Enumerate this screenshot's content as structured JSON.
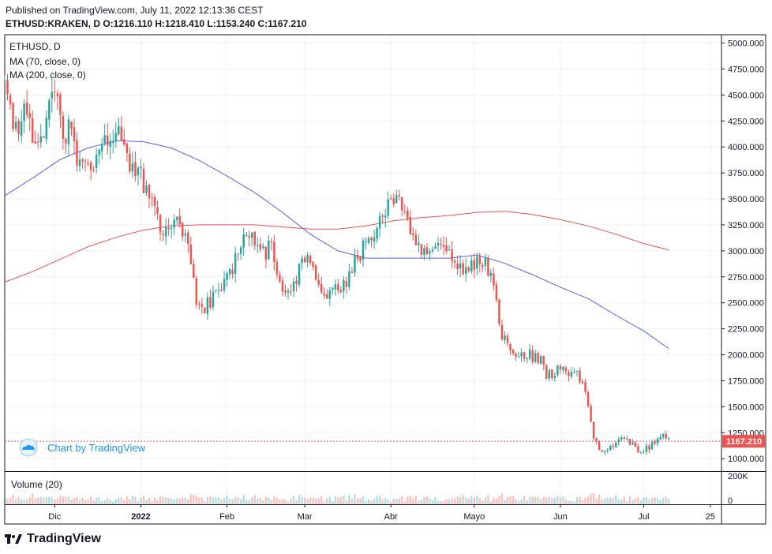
{
  "header": {
    "published": "Published on TradingView.com, July 11, 2022 12:13:36 CEST",
    "ohlc_line": "ETHUSD:KRAKEN, D  O:1216.110 H:1218.410 L:1153.240 C:1167.210"
  },
  "legend": {
    "symbol": "ETHUSD, D",
    "ma70": "MA (70, close, 0)",
    "ma200": "MA (200, close, 0)",
    "volume": "Volume (20)"
  },
  "watermark": "Chart by TradingView",
  "footer_brand": "TradingView",
  "colors": {
    "up": "#26a69a",
    "down": "#ef5350",
    "ma70": "#5b5ff0",
    "ma200": "#ef5350",
    "last_price": "#ef5350",
    "grid": "#eef1f6"
  },
  "chart_data": {
    "type": "candlestick",
    "symbol": "ETHUSD",
    "exchange": "KRAKEN",
    "timeframe": "D",
    "last_price": "1167.210",
    "price_axis": {
      "range": [
        880,
        5080
      ],
      "ticks": [
        1000,
        1250,
        1500,
        1750,
        2000,
        2250,
        2500,
        2750,
        3000,
        3250,
        3500,
        3750,
        4000,
        4250,
        4500,
        4750,
        5000
      ],
      "tick_labels": [
        "1000.000",
        "1250.000",
        "1500.000",
        "1750.000",
        "2000.000",
        "2250.000",
        "2500.000",
        "2750.000",
        "3000.000",
        "3250.000",
        "3500.000",
        "3750.000",
        "4000.000",
        "4250.000",
        "4500.000",
        "4750.000",
        "5000.000"
      ]
    },
    "volume_axis": {
      "tick_labels": [
        "200K",
        "0"
      ]
    },
    "time_axis": {
      "start": "2021-11-13",
      "end": "2022-07-29",
      "ticks": [
        {
          "date": "2021-12-01",
          "label": "Dic"
        },
        {
          "date": "2022-01-01",
          "label": "2022"
        },
        {
          "date": "2022-02-01",
          "label": "Feb"
        },
        {
          "date": "2022-03-01",
          "label": "Mar"
        },
        {
          "date": "2022-04-01",
          "label": "Abr"
        },
        {
          "date": "2022-05-01",
          "label": "Mayo"
        },
        {
          "date": "2022-06-01",
          "label": "Jun"
        },
        {
          "date": "2022-07-01",
          "label": "Jul"
        },
        {
          "date": "2022-07-25",
          "label": "25"
        }
      ]
    },
    "price_anchors": [
      [
        "2021-11-13",
        4660
      ],
      [
        "2021-11-16",
        4200
      ],
      [
        "2021-11-20",
        4300
      ],
      [
        "2021-11-23",
        4100
      ],
      [
        "2021-11-26",
        4000
      ],
      [
        "2021-11-30",
        4640
      ],
      [
        "2021-12-03",
        4400
      ],
      [
        "2021-12-04",
        4000
      ],
      [
        "2021-12-07",
        4300
      ],
      [
        "2021-12-09",
        3900
      ],
      [
        "2021-12-14",
        3800
      ],
      [
        "2021-12-19",
        4000
      ],
      [
        "2021-12-24",
        4100
      ],
      [
        "2021-12-28",
        3800
      ],
      [
        "2022-01-01",
        3700
      ],
      [
        "2022-01-05",
        3550
      ],
      [
        "2022-01-09",
        3150
      ],
      [
        "2022-01-13",
        3300
      ],
      [
        "2022-01-18",
        3150
      ],
      [
        "2022-01-21",
        2550
      ],
      [
        "2022-01-24",
        2450
      ],
      [
        "2022-01-28",
        2600
      ],
      [
        "2022-02-02",
        2750
      ],
      [
        "2022-02-06",
        3100
      ],
      [
        "2022-02-09",
        3200
      ],
      [
        "2022-02-13",
        2950
      ],
      [
        "2022-02-17",
        3050
      ],
      [
        "2022-02-20",
        2700
      ],
      [
        "2022-02-24",
        2600
      ],
      [
        "2022-03-01",
        2950
      ],
      [
        "2022-03-03",
        2850
      ],
      [
        "2022-03-07",
        2550
      ],
      [
        "2022-03-12",
        2600
      ],
      [
        "2022-03-16",
        2700
      ],
      [
        "2022-03-20",
        2950
      ],
      [
        "2022-03-26",
        3150
      ],
      [
        "2022-03-29",
        3400
      ],
      [
        "2022-04-03",
        3500
      ],
      [
        "2022-04-05",
        3450
      ],
      [
        "2022-04-08",
        3250
      ],
      [
        "2022-04-12",
        3000
      ],
      [
        "2022-04-16",
        3050
      ],
      [
        "2022-04-21",
        3000
      ],
      [
        "2022-04-26",
        2850
      ],
      [
        "2022-05-01",
        2850
      ],
      [
        "2022-05-05",
        2900
      ],
      [
        "2022-05-08",
        2650
      ],
      [
        "2022-05-11",
        2200
      ],
      [
        "2022-05-15",
        2050
      ],
      [
        "2022-05-20",
        2000
      ],
      [
        "2022-05-25",
        1950
      ],
      [
        "2022-05-27",
        1800
      ],
      [
        "2022-06-01",
        1850
      ],
      [
        "2022-06-06",
        1850
      ],
      [
        "2022-06-10",
        1650
      ],
      [
        "2022-06-13",
        1200
      ],
      [
        "2022-06-15",
        1100
      ],
      [
        "2022-06-19",
        1100
      ],
      [
        "2022-06-24",
        1200
      ],
      [
        "2022-06-29",
        1080
      ],
      [
        "2022-07-03",
        1100
      ],
      [
        "2022-07-06",
        1200
      ],
      [
        "2022-07-08",
        1220
      ],
      [
        "2022-07-10",
        1167
      ]
    ],
    "ma70_points": [
      [
        "2021-11-13",
        3530
      ],
      [
        "2021-11-23",
        3700
      ],
      [
        "2021-12-03",
        3880
      ],
      [
        "2021-12-13",
        3990
      ],
      [
        "2021-12-23",
        4060
      ],
      [
        "2022-01-02",
        4050
      ],
      [
        "2022-01-12",
        3990
      ],
      [
        "2022-01-22",
        3870
      ],
      [
        "2022-02-01",
        3720
      ],
      [
        "2022-02-11",
        3560
      ],
      [
        "2022-02-21",
        3370
      ],
      [
        "2022-03-03",
        3160
      ],
      [
        "2022-03-13",
        3000
      ],
      [
        "2022-03-23",
        2930
      ],
      [
        "2022-04-02",
        2930
      ],
      [
        "2022-04-12",
        2930
      ],
      [
        "2022-04-22",
        2930
      ],
      [
        "2022-05-02",
        2960
      ],
      [
        "2022-05-12",
        2880
      ],
      [
        "2022-05-22",
        2770
      ],
      [
        "2022-06-01",
        2650
      ],
      [
        "2022-06-11",
        2540
      ],
      [
        "2022-06-21",
        2380
      ],
      [
        "2022-07-01",
        2230
      ],
      [
        "2022-07-10",
        2060
      ]
    ],
    "ma200_points": [
      [
        "2021-11-13",
        2700
      ],
      [
        "2021-11-23",
        2800
      ],
      [
        "2021-12-03",
        2920
      ],
      [
        "2021-12-13",
        3040
      ],
      [
        "2021-12-23",
        3130
      ],
      [
        "2022-01-02",
        3200
      ],
      [
        "2022-01-12",
        3240
      ],
      [
        "2022-01-22",
        3250
      ],
      [
        "2022-02-01",
        3250
      ],
      [
        "2022-02-11",
        3250
      ],
      [
        "2022-02-21",
        3230
      ],
      [
        "2022-03-03",
        3210
      ],
      [
        "2022-03-13",
        3210
      ],
      [
        "2022-03-23",
        3240
      ],
      [
        "2022-04-02",
        3290
      ],
      [
        "2022-04-12",
        3320
      ],
      [
        "2022-04-22",
        3340
      ],
      [
        "2022-05-02",
        3370
      ],
      [
        "2022-05-12",
        3380
      ],
      [
        "2022-05-22",
        3350
      ],
      [
        "2022-06-01",
        3300
      ],
      [
        "2022-06-11",
        3240
      ],
      [
        "2022-06-21",
        3160
      ],
      [
        "2022-07-01",
        3070
      ],
      [
        "2022-07-10",
        3010
      ]
    ],
    "volume_max": 250000
  }
}
